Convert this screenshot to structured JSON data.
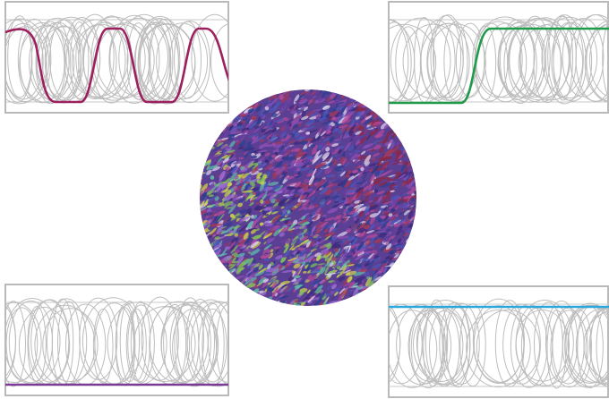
{
  "panels": [
    {
      "color": "#9c1f5e"
    },
    {
      "color": "#1f9a4a"
    },
    {
      "color": "#7b3a96"
    },
    {
      "color": "#2aa7dc"
    }
  ]
}
